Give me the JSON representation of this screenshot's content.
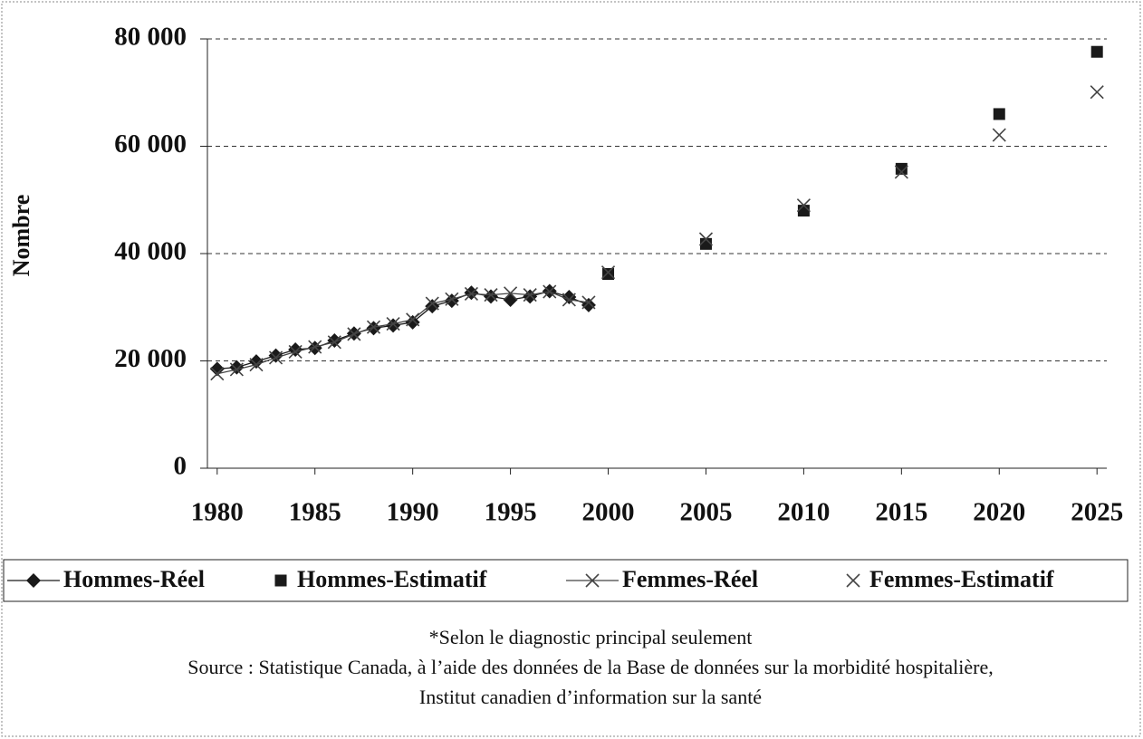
{
  "chart_data": {
    "type": "line",
    "y_label": "Nombre",
    "x": [
      1980,
      1981,
      1982,
      1983,
      1984,
      1985,
      1986,
      1987,
      1988,
      1989,
      1990,
      1991,
      1992,
      1993,
      1994,
      1995,
      1996,
      1997,
      1998,
      1999,
      2000,
      2005,
      2010,
      2015,
      2020,
      2025
    ],
    "series": [
      {
        "name": "Hommes-Réel",
        "color": "#1a1a1a",
        "marker": "diamond",
        "line": true,
        "values": [
          18500,
          18800,
          19900,
          21000,
          22100,
          22400,
          23800,
          25100,
          26100,
          26600,
          27200,
          30200,
          31200,
          32700,
          32000,
          31400,
          32000,
          33000,
          31900,
          30400,
          null,
          null,
          null,
          null,
          null,
          null
        ]
      },
      {
        "name": "Hommes-Estimatif",
        "color": "#1a1a1a",
        "marker": "square",
        "line": false,
        "values": [
          null,
          null,
          null,
          null,
          null,
          null,
          null,
          null,
          null,
          null,
          null,
          null,
          null,
          null,
          null,
          null,
          null,
          null,
          null,
          null,
          36200,
          41800,
          48000,
          55800,
          66000,
          77600
        ]
      },
      {
        "name": "Femmes-Réel",
        "color": "#444444",
        "marker": "x",
        "line": true,
        "values": [
          17600,
          18400,
          19300,
          20600,
          21700,
          22600,
          23500,
          25000,
          26300,
          26900,
          27700,
          30700,
          31500,
          32500,
          32300,
          32600,
          32300,
          32900,
          31400,
          30900,
          null,
          null,
          null,
          null,
          null,
          null
        ]
      },
      {
        "name": "Femmes-Estimatif",
        "color": "#444444",
        "marker": "x",
        "line": false,
        "values": [
          null,
          null,
          null,
          null,
          null,
          null,
          null,
          null,
          null,
          null,
          null,
          null,
          null,
          null,
          null,
          null,
          null,
          null,
          null,
          null,
          36500,
          42700,
          49000,
          55200,
          62100,
          70100
        ]
      }
    ],
    "xlim": [
      1979.5,
      2025.5
    ],
    "xticks": [
      1980,
      1985,
      1990,
      1995,
      2000,
      2005,
      2010,
      2015,
      2020,
      2025
    ],
    "ylim": [
      0,
      80000
    ],
    "yticks": [
      0,
      {
        "value": 20000,
        "label": "20 000"
      },
      {
        "value": 40000,
        "label": "40 000"
      },
      {
        "value": 60000,
        "label": "60 000"
      },
      {
        "value": 80000,
        "label": "80 000"
      }
    ],
    "grid": true,
    "legend": "bottom",
    "notes": [
      "*Selon le diagnostic principal seulement",
      "Source : Statistique Canada, à l’aide des données de la Base de données sur la morbidité hospitalière,",
      "Institut canadien d’information sur la santé"
    ]
  }
}
